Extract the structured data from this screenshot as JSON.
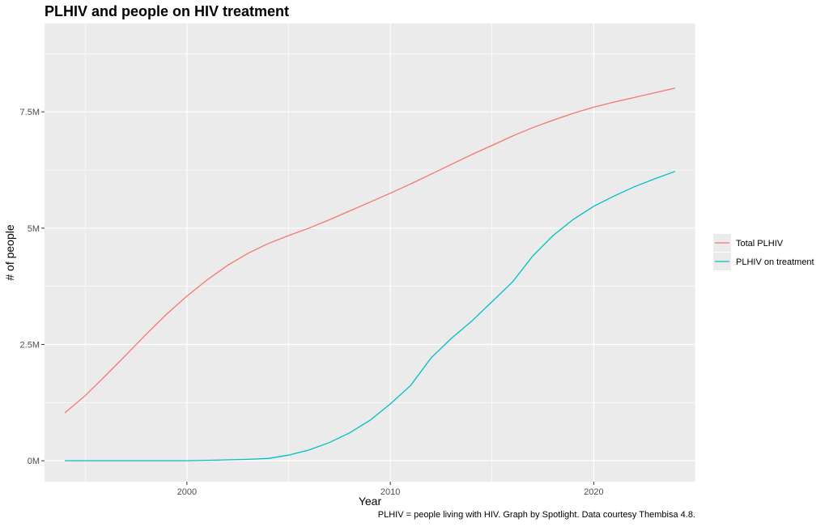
{
  "chart_data": {
    "type": "line",
    "title": "PLHIV and people on HIV treatment",
    "xlabel": "Year",
    "ylabel": "# of people",
    "caption": "PLHIV = people living with HIV. Graph by Spotlight. Data courtesy Thembisa 4.8.",
    "xlim": [
      1993,
      2025
    ],
    "ylim": [
      -450000,
      9400000
    ],
    "x_ticks": [
      2000,
      2010,
      2020
    ],
    "y_ticks": [
      0,
      2500000,
      5000000,
      7500000
    ],
    "y_tick_labels": [
      "0M",
      "2.5M",
      "5M",
      "7.5M"
    ],
    "grid": true,
    "legend_position": "right",
    "x": [
      1994,
      1995,
      1996,
      1997,
      1998,
      1999,
      2000,
      2001,
      2002,
      2003,
      2004,
      2005,
      2006,
      2007,
      2008,
      2009,
      2010,
      2011,
      2012,
      2013,
      2014,
      2015,
      2016,
      2017,
      2018,
      2019,
      2020,
      2021,
      2022,
      2023,
      2024
    ],
    "series": [
      {
        "name": "Total PLHIV",
        "color": "#F8766D",
        "values": [
          1030000,
          1400000,
          1830000,
          2270000,
          2720000,
          3150000,
          3540000,
          3890000,
          4200000,
          4460000,
          4670000,
          4840000,
          5000000,
          5180000,
          5370000,
          5560000,
          5750000,
          5950000,
          6160000,
          6370000,
          6580000,
          6780000,
          6980000,
          7160000,
          7320000,
          7470000,
          7600000,
          7710000,
          7810000,
          7910000,
          8010000
        ]
      },
      {
        "name": "PLHIV on treatment",
        "color": "#00BFC4",
        "values": [
          0,
          0,
          0,
          0,
          0,
          0,
          0,
          10000,
          20000,
          30000,
          50000,
          120000,
          230000,
          390000,
          600000,
          870000,
          1220000,
          1620000,
          2210000,
          2630000,
          3000000,
          3420000,
          3840000,
          4400000,
          4840000,
          5190000,
          5470000,
          5690000,
          5890000,
          6060000,
          6220000
        ]
      }
    ]
  }
}
